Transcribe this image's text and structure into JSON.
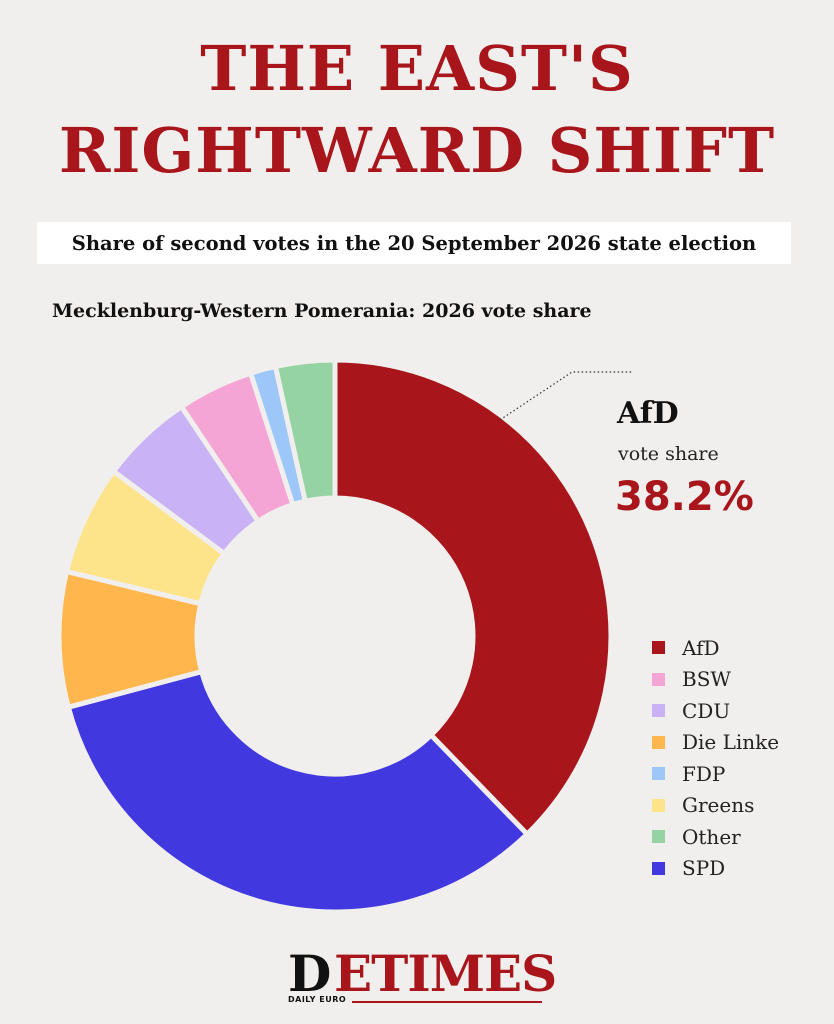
{
  "headline": {
    "line1": "THE EAST'S",
    "line2": "RIGHTWARD SHIFT"
  },
  "subtitle": "Share of second votes in the 20 September 2026 state election",
  "callout": {
    "party": "AfD",
    "label": "vote share",
    "value": "38.2%"
  },
  "logo": {
    "mark": "D",
    "word": "ETIMES",
    "tag": "DAILY EURO"
  },
  "chart_data": {
    "type": "pie",
    "style": "donut",
    "title": "Mecklenburg-Western Pomerania: 2026 vote share",
    "legend_position": "right",
    "slices": [
      {
        "label": "AfD",
        "value": 38.2,
        "color": "#a8151b"
      },
      {
        "label": "SPD",
        "value": 33.5,
        "color": "#4238e0"
      },
      {
        "label": "Die Linke",
        "value": 8.0,
        "color": "#ffb74d"
      },
      {
        "label": "Greens",
        "value": 6.5,
        "color": "#fde48a"
      },
      {
        "label": "CDU",
        "value": 5.5,
        "color": "#c9b2f5"
      },
      {
        "label": "BSW",
        "value": 4.5,
        "color": "#f5a5d5"
      },
      {
        "label": "FDP",
        "value": 1.5,
        "color": "#9dc7f9"
      },
      {
        "label": "Other",
        "value": 3.5,
        "color": "#95d3a2"
      }
    ],
    "legend": [
      {
        "label": "AfD",
        "color": "#a8151b"
      },
      {
        "label": "BSW",
        "color": "#f5a5d5"
      },
      {
        "label": "CDU",
        "color": "#c9b2f5"
      },
      {
        "label": "Die Linke",
        "color": "#ffb74d"
      },
      {
        "label": "FDP",
        "color": "#9dc7f9"
      },
      {
        "label": "Greens",
        "color": "#fde48a"
      },
      {
        "label": "Other",
        "color": "#95d3a2"
      },
      {
        "label": "SPD",
        "color": "#4238e0"
      }
    ]
  }
}
